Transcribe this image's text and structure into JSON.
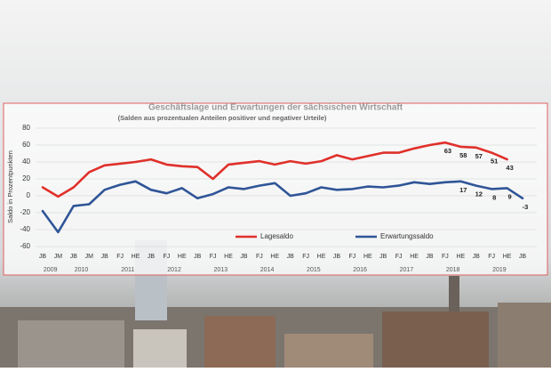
{
  "chart_data": {
    "type": "line",
    "title": "Geschäftslage und Erwartungen der sächsischen Wirtschaft",
    "subtitle": "(Salden aus prozentualen Anteilen positiver und negativer Urteile)",
    "y_label": "Saldo in Prozentpunkten",
    "categories": [
      "JB",
      "JM",
      "JB",
      "JM",
      "JB",
      "FJ",
      "HE",
      "JB",
      "FJ",
      "HE",
      "JB",
      "FJ",
      "HE",
      "JB",
      "FJ",
      "HE",
      "JB",
      "FJ",
      "HE",
      "JB",
      "FJ",
      "HE",
      "JB",
      "FJ",
      "HE",
      "JB",
      "FJ",
      "HE",
      "JB",
      "FJ",
      "HE",
      "JB"
    ],
    "years": [
      "2009",
      null,
      "2010",
      null,
      null,
      "2011",
      null,
      null,
      "2012",
      null,
      null,
      "2013",
      null,
      null,
      "2014",
      null,
      null,
      "2015",
      null,
      null,
      "2016",
      null,
      null,
      "2017",
      null,
      null,
      "2018",
      null,
      null,
      "2019",
      null,
      null
    ],
    "series": [
      {
        "name": "Lagesaldo",
        "color": "#e0302a",
        "values": [
          10,
          -1,
          10,
          28,
          36,
          38,
          40,
          43,
          37,
          35,
          34,
          20,
          37,
          39,
          41,
          37,
          41,
          38,
          41,
          48,
          43,
          47,
          51,
          51,
          56,
          60,
          63,
          58,
          57,
          51,
          43,
          null
        ],
        "value_labels": [
          null,
          null,
          null,
          null,
          null,
          null,
          null,
          null,
          null,
          null,
          null,
          null,
          null,
          null,
          null,
          null,
          null,
          null,
          null,
          null,
          null,
          null,
          null,
          null,
          null,
          null,
          "63",
          "58",
          "57",
          "51",
          "43",
          null
        ]
      },
      {
        "name": "Erwartungssaldo",
        "color": "#2f5597",
        "values": [
          -18,
          -43,
          -12,
          -10,
          7,
          13,
          17,
          7,
          3,
          9,
          -3,
          2,
          10,
          8,
          12,
          15,
          0,
          3,
          10,
          7,
          8,
          11,
          10,
          12,
          16,
          14,
          16,
          17,
          12,
          8,
          9,
          -3
        ],
        "value_labels": [
          null,
          null,
          null,
          null,
          null,
          null,
          null,
          null,
          null,
          null,
          null,
          null,
          null,
          null,
          null,
          null,
          null,
          null,
          null,
          null,
          null,
          null,
          null,
          null,
          null,
          null,
          null,
          "17",
          "12",
          "8",
          "9",
          "-3"
        ]
      }
    ],
    "ylim": [
      -60,
      80
    ],
    "yticks": [
      -60,
      -40,
      -20,
      0,
      20,
      40,
      60,
      80
    ],
    "grid": true,
    "legend": "bottom"
  }
}
